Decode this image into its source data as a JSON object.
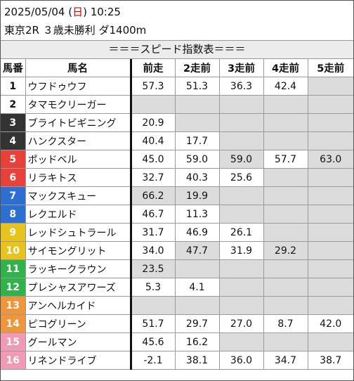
{
  "header": {
    "date_prefix": "2025/05/04 (",
    "day": "日",
    "date_suffix": ") 10:25",
    "race": "東京2R ３歳未勝利 ダ1400m"
  },
  "banner": "＝＝＝スピード指数表＝＝＝",
  "columns": [
    "馬番",
    "馬名",
    "前走",
    "2走前",
    "3走前",
    "4走前",
    "5走前"
  ],
  "colors": {
    "gate1": "#ffffff",
    "gate2": "#ffffff",
    "gate3": "#333333",
    "gate4": "#333333",
    "gate5": "#e8413a",
    "gate6": "#e8413a",
    "gate7": "#2d6fd0",
    "gate8": "#2d6fd0",
    "gate9": "#e8c31c",
    "gate10": "#e8c31c",
    "gate11": "#2fb34a",
    "gate12": "#2fb34a",
    "gate13": "#f0953a",
    "gate14": "#f0953a",
    "gate15": "#f09ab4",
    "gate16": "#f09ab4",
    "shade": "#dcdcdc"
  },
  "rows": [
    {
      "num": "1",
      "name": "ウフドゥウフ",
      "v": [
        "57.3",
        "51.3",
        "36.3",
        "42.4",
        ""
      ]
    },
    {
      "num": "2",
      "name": "タマモクリーガー",
      "v": [
        "",
        "",
        "",
        "",
        ""
      ]
    },
    {
      "num": "3",
      "name": "ブライトビギニング",
      "v": [
        "20.9",
        "",
        "",
        "",
        ""
      ]
    },
    {
      "num": "4",
      "name": "ハンクスター",
      "v": [
        "40.4",
        "17.7",
        "",
        "",
        ""
      ]
    },
    {
      "num": "5",
      "name": "ポッドベル",
      "v": [
        "45.0",
        "59.0",
        "59.0",
        "57.7",
        "63.0"
      ]
    },
    {
      "num": "6",
      "name": "リラキトス",
      "v": [
        "32.7",
        "40.3",
        "25.6",
        "",
        ""
      ]
    },
    {
      "num": "7",
      "name": "マックスキュー",
      "v": [
        "66.2",
        "19.9",
        "",
        "",
        ""
      ]
    },
    {
      "num": "8",
      "name": "レクエルド",
      "v": [
        "46.7",
        "11.3",
        "",
        "",
        ""
      ]
    },
    {
      "num": "9",
      "name": "レッドシュトラール",
      "v": [
        "31.7",
        "46.9",
        "26.1",
        "",
        ""
      ]
    },
    {
      "num": "10",
      "name": "サイモングリット",
      "v": [
        "34.0",
        "47.7",
        "31.9",
        "29.2",
        ""
      ]
    },
    {
      "num": "11",
      "name": "ラッキークラウン",
      "v": [
        "23.5",
        "",
        "",
        "",
        ""
      ]
    },
    {
      "num": "12",
      "name": "プレシャスアワーズ",
      "v": [
        "5.3",
        "4.1",
        "",
        "",
        ""
      ]
    },
    {
      "num": "13",
      "name": "アンヘルカイド",
      "v": [
        "",
        "",
        "",
        "",
        ""
      ]
    },
    {
      "num": "14",
      "name": "ピコグリーン",
      "v": [
        "51.7",
        "29.7",
        "27.0",
        "8.7",
        "42.0"
      ]
    },
    {
      "num": "15",
      "name": "グールマン",
      "v": [
        "45.6",
        "16.2",
        "",
        "",
        ""
      ]
    },
    {
      "num": "16",
      "name": "リネンドライブ",
      "v": [
        "-2.1",
        "38.1",
        "36.0",
        "34.7",
        "38.7"
      ]
    }
  ]
}
